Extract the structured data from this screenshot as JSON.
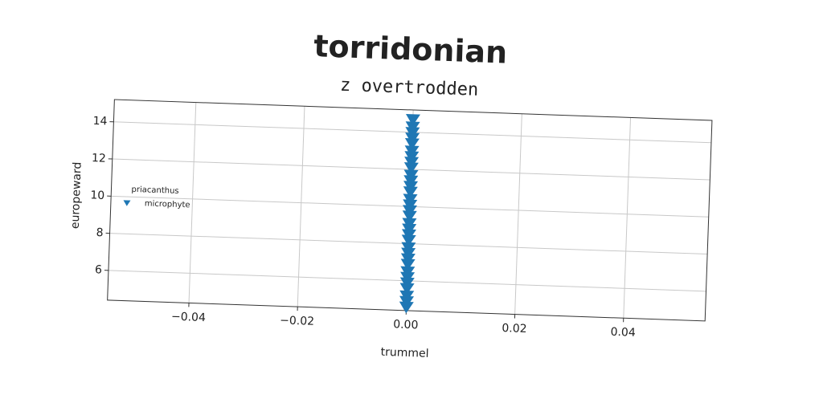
{
  "chart_data": {
    "type": "scatter",
    "title": "torridonian",
    "subtitle": "z overtrodden",
    "x_label": "trummel",
    "y_label": "europeward",
    "legend_title": "priacanthus",
    "legend_position": "center left",
    "series": [
      {
        "name": "microphyte",
        "color": "#1f77b4",
        "marker": "triangle-down",
        "x": [
          0,
          0,
          0,
          0,
          0,
          0,
          0,
          0,
          0,
          0,
          0,
          0,
          0,
          0,
          0,
          0,
          0,
          0,
          0,
          0,
          0,
          0,
          0,
          0,
          0,
          0,
          0,
          0,
          0,
          0,
          0,
          0
        ],
        "values": [
          4.6,
          4.9,
          5.2,
          5.6,
          5.9,
          6.2,
          6.5,
          6.9,
          7.2,
          7.5,
          7.8,
          8.2,
          8.5,
          8.8,
          9.1,
          9.5,
          9.8,
          10.1,
          10.4,
          10.8,
          11.1,
          11.4,
          11.7,
          12.1,
          12.4,
          12.7,
          13.0,
          13.4,
          13.7,
          14.0,
          14.3,
          14.7
        ]
      }
    ],
    "xlim": [
      -0.055,
      0.055
    ],
    "ylim": [
      4.4,
      15.2
    ],
    "xticks": [
      {
        "value": -0.04,
        "label": "−0.04"
      },
      {
        "value": -0.02,
        "label": "−0.02"
      },
      {
        "value": 0,
        "label": "0.00"
      },
      {
        "value": 0.02,
        "label": "0.02"
      },
      {
        "value": 0.04,
        "label": "0.04"
      }
    ],
    "yticks": [
      6,
      8,
      10,
      12,
      14
    ],
    "grid": true
  }
}
